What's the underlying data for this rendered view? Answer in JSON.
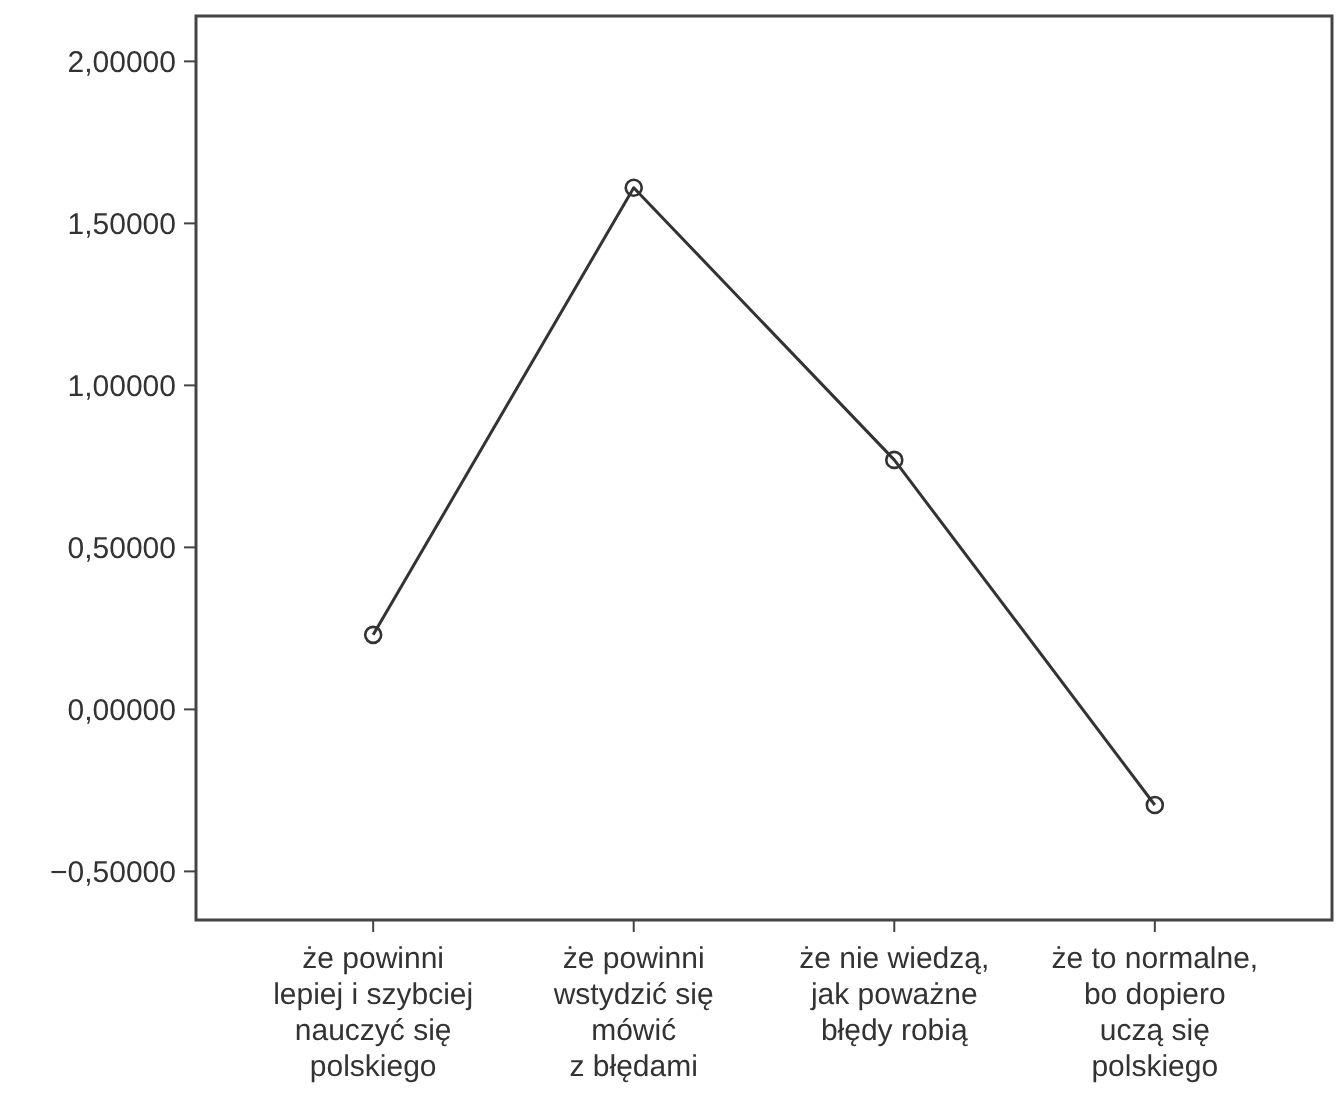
{
  "chart_data": {
    "type": "line",
    "categories": [
      "że powinni\nlepiej i szybciej\nnauczyć się\npolskiego",
      "że powinni\nwstydzić się\nmówić\nz błędami",
      "że nie wiedzą,\njak poważne\nbłędy robią",
      "że to normalne,\nbo dopiero\nuczą się\npolskiego"
    ],
    "series": [
      {
        "color": "#333333",
        "values": [
          0.23,
          1.61,
          0.77,
          -0.295
        ]
      }
    ],
    "ylim": [
      -0.65,
      2.14
    ],
    "yticks": [
      {
        "value": -0.5,
        "label": "−0,50000"
      },
      {
        "value": 0,
        "label": "0,00000"
      },
      {
        "value": 0.5,
        "label": "0,50000"
      },
      {
        "value": 1,
        "label": "1,00000"
      },
      {
        "value": 1.5,
        "label": "1,50000"
      },
      {
        "value": 2,
        "label": "2,00000"
      }
    ],
    "marker": "circle",
    "line_style": "solid"
  }
}
